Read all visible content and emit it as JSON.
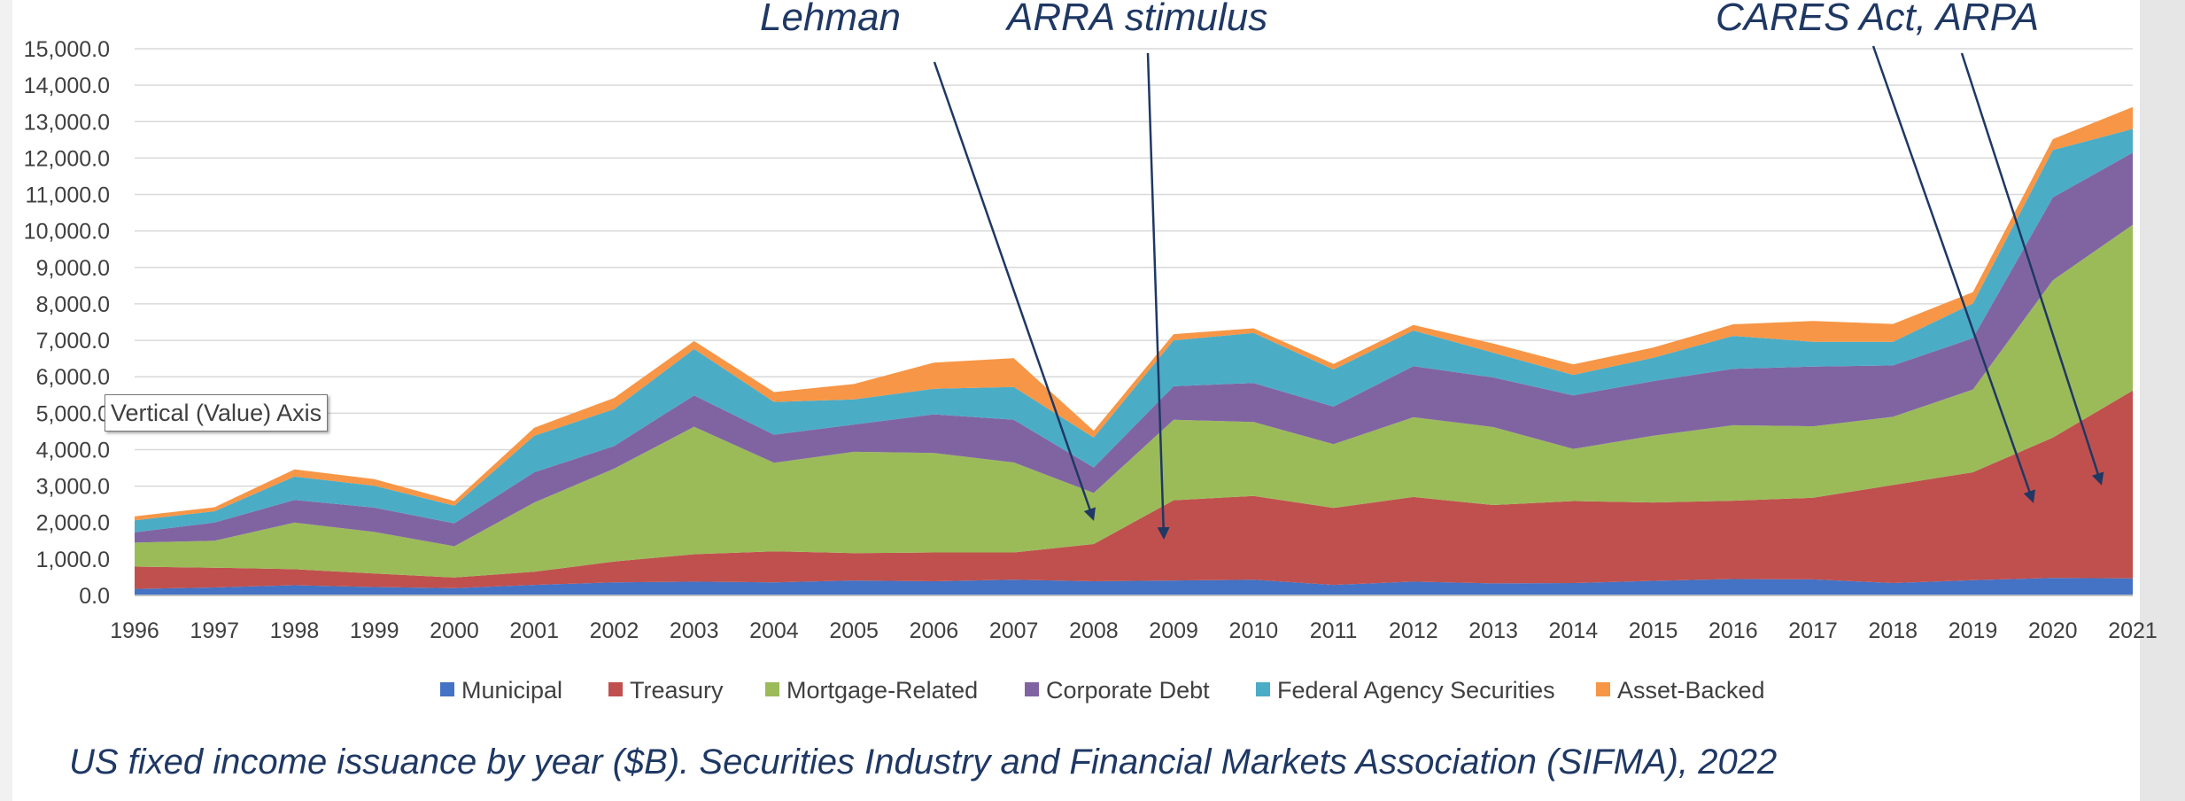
{
  "chart_data": {
    "type": "area",
    "stacked": true,
    "x": [
      "1996",
      "1997",
      "1998",
      "1999",
      "2000",
      "2001",
      "2002",
      "2003",
      "2004",
      "2005",
      "2006",
      "2007",
      "2008",
      "2009",
      "2010",
      "2011",
      "2012",
      "2013",
      "2014",
      "2015",
      "2016",
      "2017",
      "2018",
      "2019",
      "2020",
      "2021"
    ],
    "ylim": [
      0,
      15000
    ],
    "yticks": [
      "0.0",
      "1,000.0",
      "2,000.0",
      "3,000.0",
      "4,000.0",
      "5,000.0",
      "6,000.0",
      "7,000.0",
      "8,000.0",
      "9,000.0",
      "10,000.0",
      "11,000.0",
      "12,000.0",
      "13,000.0",
      "14,000.0",
      "15,000.0"
    ],
    "grid": true,
    "legend_position": "bottom",
    "series": [
      {
        "name": "Municipal",
        "color": "#4472c4",
        "values": [
          180,
          220,
          280,
          230,
          200,
          290,
          360,
          380,
          360,
          410,
          390,
          430,
          390,
          410,
          430,
          290,
          380,
          330,
          340,
          400,
          450,
          440,
          340,
          420,
          480,
          470
        ]
      },
      {
        "name": "Treasury",
        "color": "#c0504d",
        "values": [
          610,
          540,
          440,
          370,
          290,
          360,
          570,
          750,
          850,
          750,
          790,
          750,
          1020,
          2200,
          2300,
          2110,
          2320,
          2150,
          2250,
          2150,
          2150,
          2240,
          2690,
          2960,
          3850,
          5150
        ]
      },
      {
        "name": "Mortgage-Related",
        "color": "#9bbb59",
        "values": [
          660,
          740,
          1280,
          1140,
          860,
          1900,
          2550,
          3500,
          2430,
          2780,
          2730,
          2470,
          1400,
          2210,
          2030,
          1750,
          2190,
          2140,
          1430,
          1830,
          2070,
          1960,
          1870,
          2270,
          4320,
          4550
        ]
      },
      {
        "name": "Corporate Debt",
        "color": "#8064a2",
        "values": [
          280,
          500,
          620,
          670,
          630,
          830,
          620,
          860,
          770,
          750,
          1060,
          1170,
          700,
          920,
          1070,
          1030,
          1400,
          1360,
          1470,
          1500,
          1550,
          1640,
          1410,
          1410,
          2270,
          1980
        ]
      },
      {
        "name": "Federal Agency Securities",
        "color": "#4bacc6",
        "values": [
          330,
          310,
          640,
          600,
          480,
          1000,
          1010,
          1270,
          900,
          690,
          700,
          900,
          820,
          1260,
          1370,
          1020,
          980,
          680,
          560,
          640,
          900,
          680,
          650,
          950,
          1300,
          650
        ]
      },
      {
        "name": "Asset-Backed",
        "color": "#f79646",
        "values": [
          110,
          110,
          200,
          180,
          130,
          220,
          310,
          220,
          270,
          420,
          720,
          790,
          190,
          170,
          130,
          150,
          150,
          250,
          290,
          280,
          320,
          570,
          490,
          310,
          300,
          600
        ]
      }
    ],
    "annotations": [
      {
        "text": "Lehman"
      },
      {
        "text": "ARRA stimulus"
      },
      {
        "text": "CARES Act, ARPA"
      }
    ]
  },
  "tooltip": {
    "text": "Vertical (Value) Axis"
  },
  "caption": "US fixed income issuance by year ($B). Securities Industry and Financial Markets Association (SIFMA), 2022"
}
